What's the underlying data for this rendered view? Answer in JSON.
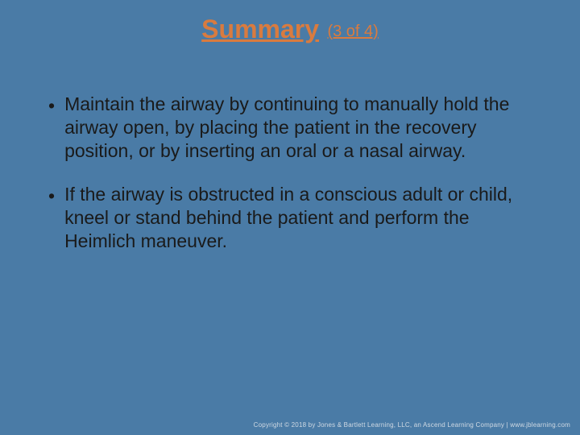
{
  "colors": {
    "background": "#4a7ba6",
    "title": "#d97b3f",
    "body_text": "#1a1a1a",
    "footer_text": "#cfd9e3"
  },
  "typography": {
    "title_main_fontsize": 32,
    "title_sub_fontsize": 20,
    "body_fontsize": 23,
    "footer_fontsize": 8,
    "font_family": "Arial"
  },
  "title": {
    "main": "Summary",
    "sub": "(3 of 4)"
  },
  "bullets": [
    "Maintain the airway by continuing to manually hold the airway open, by placing the patient in the recovery position, or by inserting an oral or a nasal airway.",
    "If the airway is obstructed in a conscious adult or child, kneel or stand behind the patient and perform the Heimlich maneuver."
  ],
  "footer": "Copyright © 2018 by Jones & Bartlett Learning, LLC, an Ascend Learning Company | www.jblearning.com"
}
